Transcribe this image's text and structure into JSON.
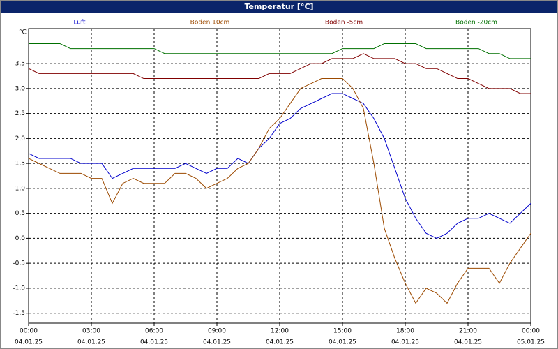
{
  "window_title": "Temperatur [°C]",
  "chart_data": {
    "type": "line",
    "y_unit": "°C",
    "x": [
      0,
      0.5,
      1,
      1.5,
      2,
      2.5,
      3,
      3.5,
      4,
      4.5,
      5,
      5.5,
      6,
      6.5,
      7,
      7.5,
      8,
      8.5,
      9,
      9.5,
      10,
      10.5,
      11,
      11.5,
      12,
      12.5,
      13,
      13.5,
      14,
      14.5,
      15,
      15.5,
      16,
      16.5,
      17,
      17.5,
      18,
      18.5,
      19,
      19.5,
      20,
      20.5,
      21,
      21.5,
      22,
      22.5,
      23,
      23.5,
      24
    ],
    "xlim": [
      0,
      24
    ],
    "xticks": [
      {
        "value": 0,
        "label": "00:00"
      },
      {
        "value": 3,
        "label": "03:00"
      },
      {
        "value": 6,
        "label": "06:00"
      },
      {
        "value": 9,
        "label": "09:00"
      },
      {
        "value": 12,
        "label": "12:00"
      },
      {
        "value": 15,
        "label": "15:00"
      },
      {
        "value": 18,
        "label": "18:00"
      },
      {
        "value": 21,
        "label": "21:00"
      },
      {
        "value": 24,
        "label": "00:00"
      }
    ],
    "xtick_dates": [
      "04.01.25",
      "04.01.25",
      "04.01.25",
      "04.01.25",
      "04.01.25",
      "04.01.25",
      "04.01.25",
      "04.01.25",
      "05.01.25"
    ],
    "ylim": [
      -1.7,
      4.2
    ],
    "yticks": [
      {
        "value": -1.5,
        "label": "-1,5"
      },
      {
        "value": -1,
        "label": "-1,0"
      },
      {
        "value": -0.5,
        "label": "-0,5"
      },
      {
        "value": 0,
        "label": "0,0"
      },
      {
        "value": 0.5,
        "label": "0,5"
      },
      {
        "value": 1,
        "label": "1,0"
      },
      {
        "value": 1.5,
        "label": "1,5"
      },
      {
        "value": 2,
        "label": "2,0"
      },
      {
        "value": 2.5,
        "label": "2,5"
      },
      {
        "value": 3,
        "label": "3,0"
      },
      {
        "value": 3.5,
        "label": "3,5"
      }
    ],
    "grid": true,
    "series": [
      {
        "name": "Luft",
        "color": "#0000cc",
        "values": [
          1.7,
          1.6,
          1.6,
          1.6,
          1.6,
          1.5,
          1.5,
          1.5,
          1.2,
          1.3,
          1.4,
          1.4,
          1.4,
          1.4,
          1.4,
          1.5,
          1.4,
          1.3,
          1.4,
          1.4,
          1.6,
          1.5,
          1.8,
          2.0,
          2.3,
          2.4,
          2.6,
          2.7,
          2.8,
          2.9,
          2.9,
          2.8,
          2.7,
          2.4,
          2.0,
          1.4,
          0.8,
          0.4,
          0.1,
          0.0,
          0.1,
          0.3,
          0.4,
          0.4,
          0.5,
          0.4,
          0.3,
          0.5,
          0.7
        ]
      },
      {
        "name": "Boden 10cm",
        "color": "#9c4a00",
        "values": [
          1.6,
          1.5,
          1.4,
          1.3,
          1.3,
          1.3,
          1.2,
          1.2,
          0.7,
          1.1,
          1.2,
          1.1,
          1.1,
          1.1,
          1.3,
          1.3,
          1.2,
          1.0,
          1.1,
          1.2,
          1.4,
          1.5,
          1.8,
          2.2,
          2.4,
          2.7,
          3.0,
          3.1,
          3.2,
          3.2,
          3.2,
          3.0,
          2.6,
          1.5,
          0.2,
          -0.4,
          -0.9,
          -1.3,
          -1.0,
          -1.1,
          -1.3,
          -0.9,
          -0.6,
          -0.6,
          -0.6,
          -0.9,
          -0.5,
          -0.2,
          0.1
        ]
      },
      {
        "name": "Boden -5cm",
        "color": "#800000",
        "values": [
          3.4,
          3.3,
          3.3,
          3.3,
          3.3,
          3.3,
          3.3,
          3.3,
          3.3,
          3.3,
          3.3,
          3.2,
          3.2,
          3.2,
          3.2,
          3.2,
          3.2,
          3.2,
          3.2,
          3.2,
          3.2,
          3.2,
          3.2,
          3.3,
          3.3,
          3.3,
          3.4,
          3.5,
          3.5,
          3.6,
          3.6,
          3.6,
          3.7,
          3.6,
          3.6,
          3.6,
          3.5,
          3.5,
          3.4,
          3.4,
          3.3,
          3.2,
          3.2,
          3.1,
          3.0,
          3.0,
          3.0,
          2.9,
          2.9
        ]
      },
      {
        "name": "Boden -20cm",
        "color": "#007000",
        "values": [
          3.9,
          3.9,
          3.9,
          3.9,
          3.8,
          3.8,
          3.8,
          3.8,
          3.8,
          3.8,
          3.8,
          3.8,
          3.8,
          3.7,
          3.7,
          3.7,
          3.7,
          3.7,
          3.7,
          3.7,
          3.7,
          3.7,
          3.7,
          3.7,
          3.7,
          3.7,
          3.7,
          3.7,
          3.7,
          3.7,
          3.8,
          3.8,
          3.8,
          3.8,
          3.9,
          3.9,
          3.9,
          3.9,
          3.8,
          3.8,
          3.8,
          3.8,
          3.8,
          3.8,
          3.7,
          3.7,
          3.6,
          3.6,
          3.6
        ]
      }
    ]
  }
}
